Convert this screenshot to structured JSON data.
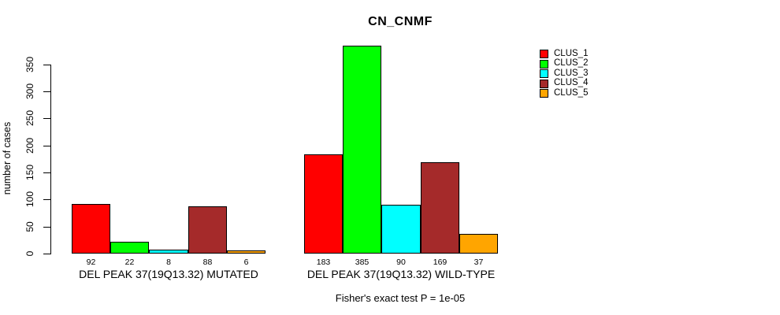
{
  "title": "CN_CNMF",
  "footer": "Fisher's exact test P = 1e-05",
  "colors": {
    "background": "#FFFFFF",
    "axis": "#000000",
    "bar_border": "#000000"
  },
  "legend": {
    "position": "top-right",
    "items": [
      {
        "label": "CLUS_1",
        "color": "#FF0000"
      },
      {
        "label": "CLUS_2",
        "color": "#00FF00"
      },
      {
        "label": "CLUS_3",
        "color": "#00FFFF"
      },
      {
        "label": "CLUS_4",
        "color": "#A52A2A"
      },
      {
        "label": "CLUS_5",
        "color": "#FFA500"
      }
    ]
  },
  "chart_data": {
    "type": "bar",
    "title": "CN_CNMF",
    "xlabel": "",
    "ylabel": "number of cases",
    "ylim": [
      0,
      350
    ],
    "yticks": [
      0,
      50,
      100,
      150,
      200,
      250,
      300,
      350
    ],
    "grid": false,
    "legend_position": "top-right",
    "categories": [
      "DEL PEAK 37(19Q13.32) MUTATED",
      "DEL PEAK 37(19Q13.32) WILD-TYPE"
    ],
    "series": [
      {
        "name": "CLUS_1",
        "color": "#FF0000",
        "values": [
          92,
          183
        ]
      },
      {
        "name": "CLUS_2",
        "color": "#00FF00",
        "values": [
          22,
          385
        ]
      },
      {
        "name": "CLUS_3",
        "color": "#00FFFF",
        "values": [
          8,
          90
        ]
      },
      {
        "name": "CLUS_4",
        "color": "#A52A2A",
        "values": [
          88,
          169
        ]
      },
      {
        "name": "CLUS_5",
        "color": "#FFA500",
        "values": [
          6,
          37
        ]
      }
    ],
    "groups": [
      {
        "label": "DEL PEAK 37(19Q13.32) MUTATED",
        "values": [
          92,
          22,
          8,
          88,
          6
        ]
      },
      {
        "label": "DEL PEAK 37(19Q13.32) WILD-TYPE",
        "values": [
          183,
          385,
          90,
          169,
          37
        ]
      }
    ],
    "bar_value_labels_shown": true,
    "annotation": "Fisher's exact test P = 1e-05"
  }
}
